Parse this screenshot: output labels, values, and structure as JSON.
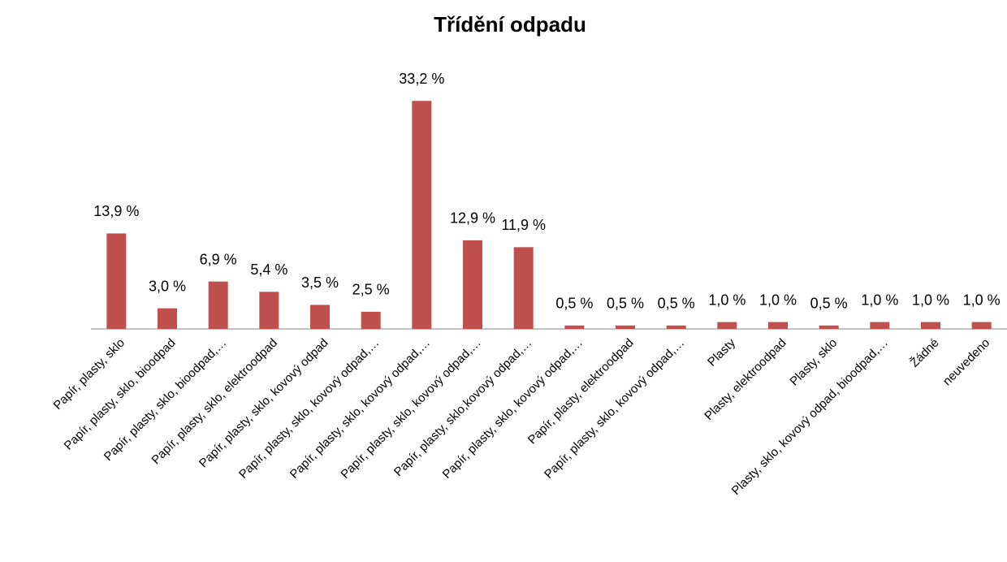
{
  "chart_data": {
    "type": "bar",
    "title": "Třídění odpadu",
    "categories": [
      "Papír, plasty, sklo",
      "Papír, plasty, sklo, bioodpad",
      "Papír, plasty, sklo, bioodpad,…",
      "Papír, plasty, sklo, elektroodpad",
      "Papír, plasty, sklo, kovový odpad",
      "Papír, plasty, sklo, kovový odpad,…",
      "Papír, plasty, sklo, kovový odpad,…",
      "Papír, plasty, sklo, kovový odpad,…",
      "Papír, plasty, sklo,kovový odpad,…",
      "Papír, plasty, sklo, kovový odpad,…",
      "Papír, plasty, elektroodpad",
      "Papír, plasty, sklo, kovový odpad,…",
      "Plasty",
      "Plasty, elektroodpad",
      "Plasty, sklo",
      "Plasty, sklo, kovový odpad, bioodpad,…",
      "Žádné",
      "neuvedeno"
    ],
    "values": [
      13.9,
      3.0,
      6.9,
      5.4,
      3.5,
      2.5,
      33.2,
      12.9,
      11.9,
      0.5,
      0.5,
      0.5,
      1.0,
      1.0,
      0.5,
      1.0,
      1.0,
      1.0
    ],
    "value_labels": [
      "13,9 %",
      "3,0 %",
      "6,9 %",
      "5,4 %",
      "3,5 %",
      "2,5 %",
      "33,2 %",
      "12,9 %",
      "11,9 %",
      "0,5 %",
      "0,5 %",
      "0,5 %",
      "1,0 %",
      "1,0 %",
      "0,5 %",
      "1,0 %",
      "1,0 %",
      "1,0 %"
    ],
    "color": "#c0504d",
    "ylim": [
      0,
      35
    ]
  }
}
